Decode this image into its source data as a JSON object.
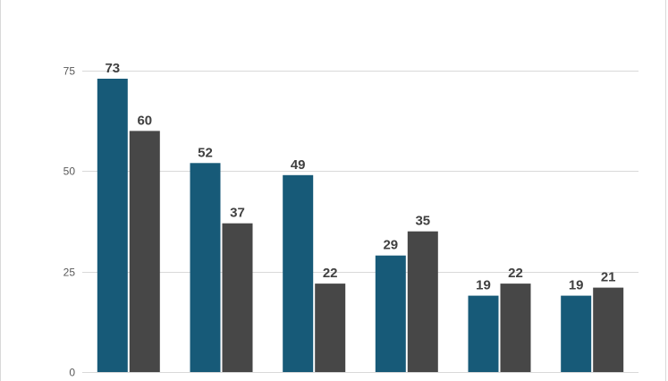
{
  "chart_data": {
    "type": "bar",
    "categories": [
      "",
      "",
      "",
      "",
      "",
      ""
    ],
    "series": [
      {
        "values": [
          73,
          52,
          49,
          29,
          19,
          19
        ],
        "color": "#175a78"
      },
      {
        "values": [
          60,
          37,
          22,
          35,
          22,
          21
        ],
        "color": "#474747"
      }
    ],
    "ylim": [
      0,
      75
    ],
    "yticks": [
      0,
      25,
      50,
      75
    ],
    "grid": true,
    "data_labels": true,
    "title": "",
    "xlabel": "",
    "ylabel": ""
  }
}
